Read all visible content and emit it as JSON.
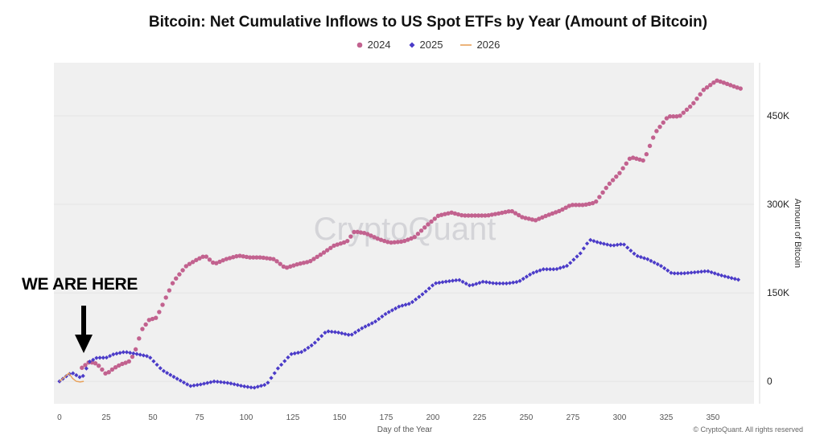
{
  "chart_data": {
    "type": "scatter",
    "title": "Bitcoin: Net Cumulative Inflows to US Spot ETFs by Year (Amount of Bitcoin)",
    "xlabel": "Day of the Year",
    "ylabel": "Amount of Bitcoin",
    "xlim": [
      -3,
      372
    ],
    "ylim": [
      -38000,
      540000
    ],
    "x_ticks": [
      0,
      25,
      50,
      75,
      100,
      125,
      150,
      175,
      200,
      225,
      250,
      275,
      300,
      325,
      350
    ],
    "y_ticks": [
      0,
      150000,
      300000,
      450000
    ],
    "y_tick_labels": [
      "0",
      "150K",
      "300K",
      "450K"
    ],
    "y_axis_side": "right",
    "grid": "horizontal",
    "legend_position": "top-center",
    "watermark": "CryptoQuant",
    "annotation": {
      "text": "WE ARE HERE",
      "points_to_day": 14
    },
    "series": [
      {
        "name": "2024",
        "marker": "circle",
        "color": "#c2628f",
        "x": [
          12,
          16,
          20,
          25,
          29,
          33,
          37,
          40,
          44,
          48,
          52,
          57,
          61,
          68,
          74,
          78,
          83,
          89,
          96,
          102,
          108,
          115,
          121,
          128,
          134,
          141,
          147,
          154,
          158,
          164,
          171,
          177,
          184,
          190,
          197,
          203,
          210,
          216,
          223,
          229,
          236,
          242,
          248,
          255,
          261,
          268,
          274,
          281,
          287,
          294,
          300,
          306,
          313,
          319,
          326,
          332,
          339,
          345,
          352,
          356,
          362,
          365
        ],
        "y": [
          23000,
          33000,
          30000,
          12000,
          22000,
          29000,
          33000,
          46000,
          87000,
          104000,
          108000,
          142000,
          169000,
          196000,
          207000,
          213000,
          199000,
          207000,
          213000,
          210000,
          210000,
          207000,
          192000,
          199000,
          203000,
          217000,
          230000,
          237000,
          254000,
          251000,
          241000,
          235000,
          237000,
          244000,
          265000,
          281000,
          286000,
          281000,
          281000,
          281000,
          285000,
          289000,
          278000,
          273000,
          281000,
          289000,
          299000,
          299000,
          303000,
          333000,
          353000,
          380000,
          374000,
          421000,
          449000,
          449000,
          469000,
          494000,
          510000,
          506000,
          499000,
          496000
        ]
      },
      {
        "name": "2025",
        "marker": "diamond",
        "color": "#4b3bc8",
        "x": [
          0,
          5,
          7,
          12,
          16,
          20,
          25,
          29,
          35,
          42,
          48,
          55,
          61,
          70,
          76,
          83,
          91,
          98,
          104,
          111,
          117,
          124,
          130,
          136,
          143,
          149,
          156,
          162,
          169,
          175,
          182,
          188,
          195,
          201,
          207,
          214,
          220,
          227,
          233,
          240,
          246,
          253,
          259,
          266,
          272,
          279,
          284,
          289,
          296,
          302,
          309,
          315,
          322,
          328,
          334,
          341,
          347,
          354,
          360,
          364
        ],
        "y": [
          0,
          12000,
          14000,
          5000,
          33000,
          40000,
          40000,
          46000,
          50000,
          46000,
          42000,
          19000,
          8000,
          -8000,
          -5000,
          0,
          -3000,
          -8000,
          -11000,
          -5000,
          22000,
          46000,
          50000,
          63000,
          85000,
          83000,
          78000,
          90000,
          101000,
          115000,
          127000,
          132000,
          149000,
          166000,
          169000,
          172000,
          162000,
          169000,
          166000,
          166000,
          169000,
          183000,
          190000,
          190000,
          196000,
          217000,
          240000,
          235000,
          230000,
          233000,
          213000,
          207000,
          196000,
          183000,
          183000,
          185000,
          187000,
          180000,
          175000,
          172000
        ]
      },
      {
        "name": "2026",
        "marker": "line",
        "color": "#e8a15a",
        "x": [
          0,
          3,
          5,
          7,
          9,
          11,
          13
        ],
        "y": [
          0,
          8000,
          14000,
          5000,
          0,
          -1000,
          0
        ]
      }
    ]
  },
  "footer": "© CryptoQuant. All rights reserved"
}
